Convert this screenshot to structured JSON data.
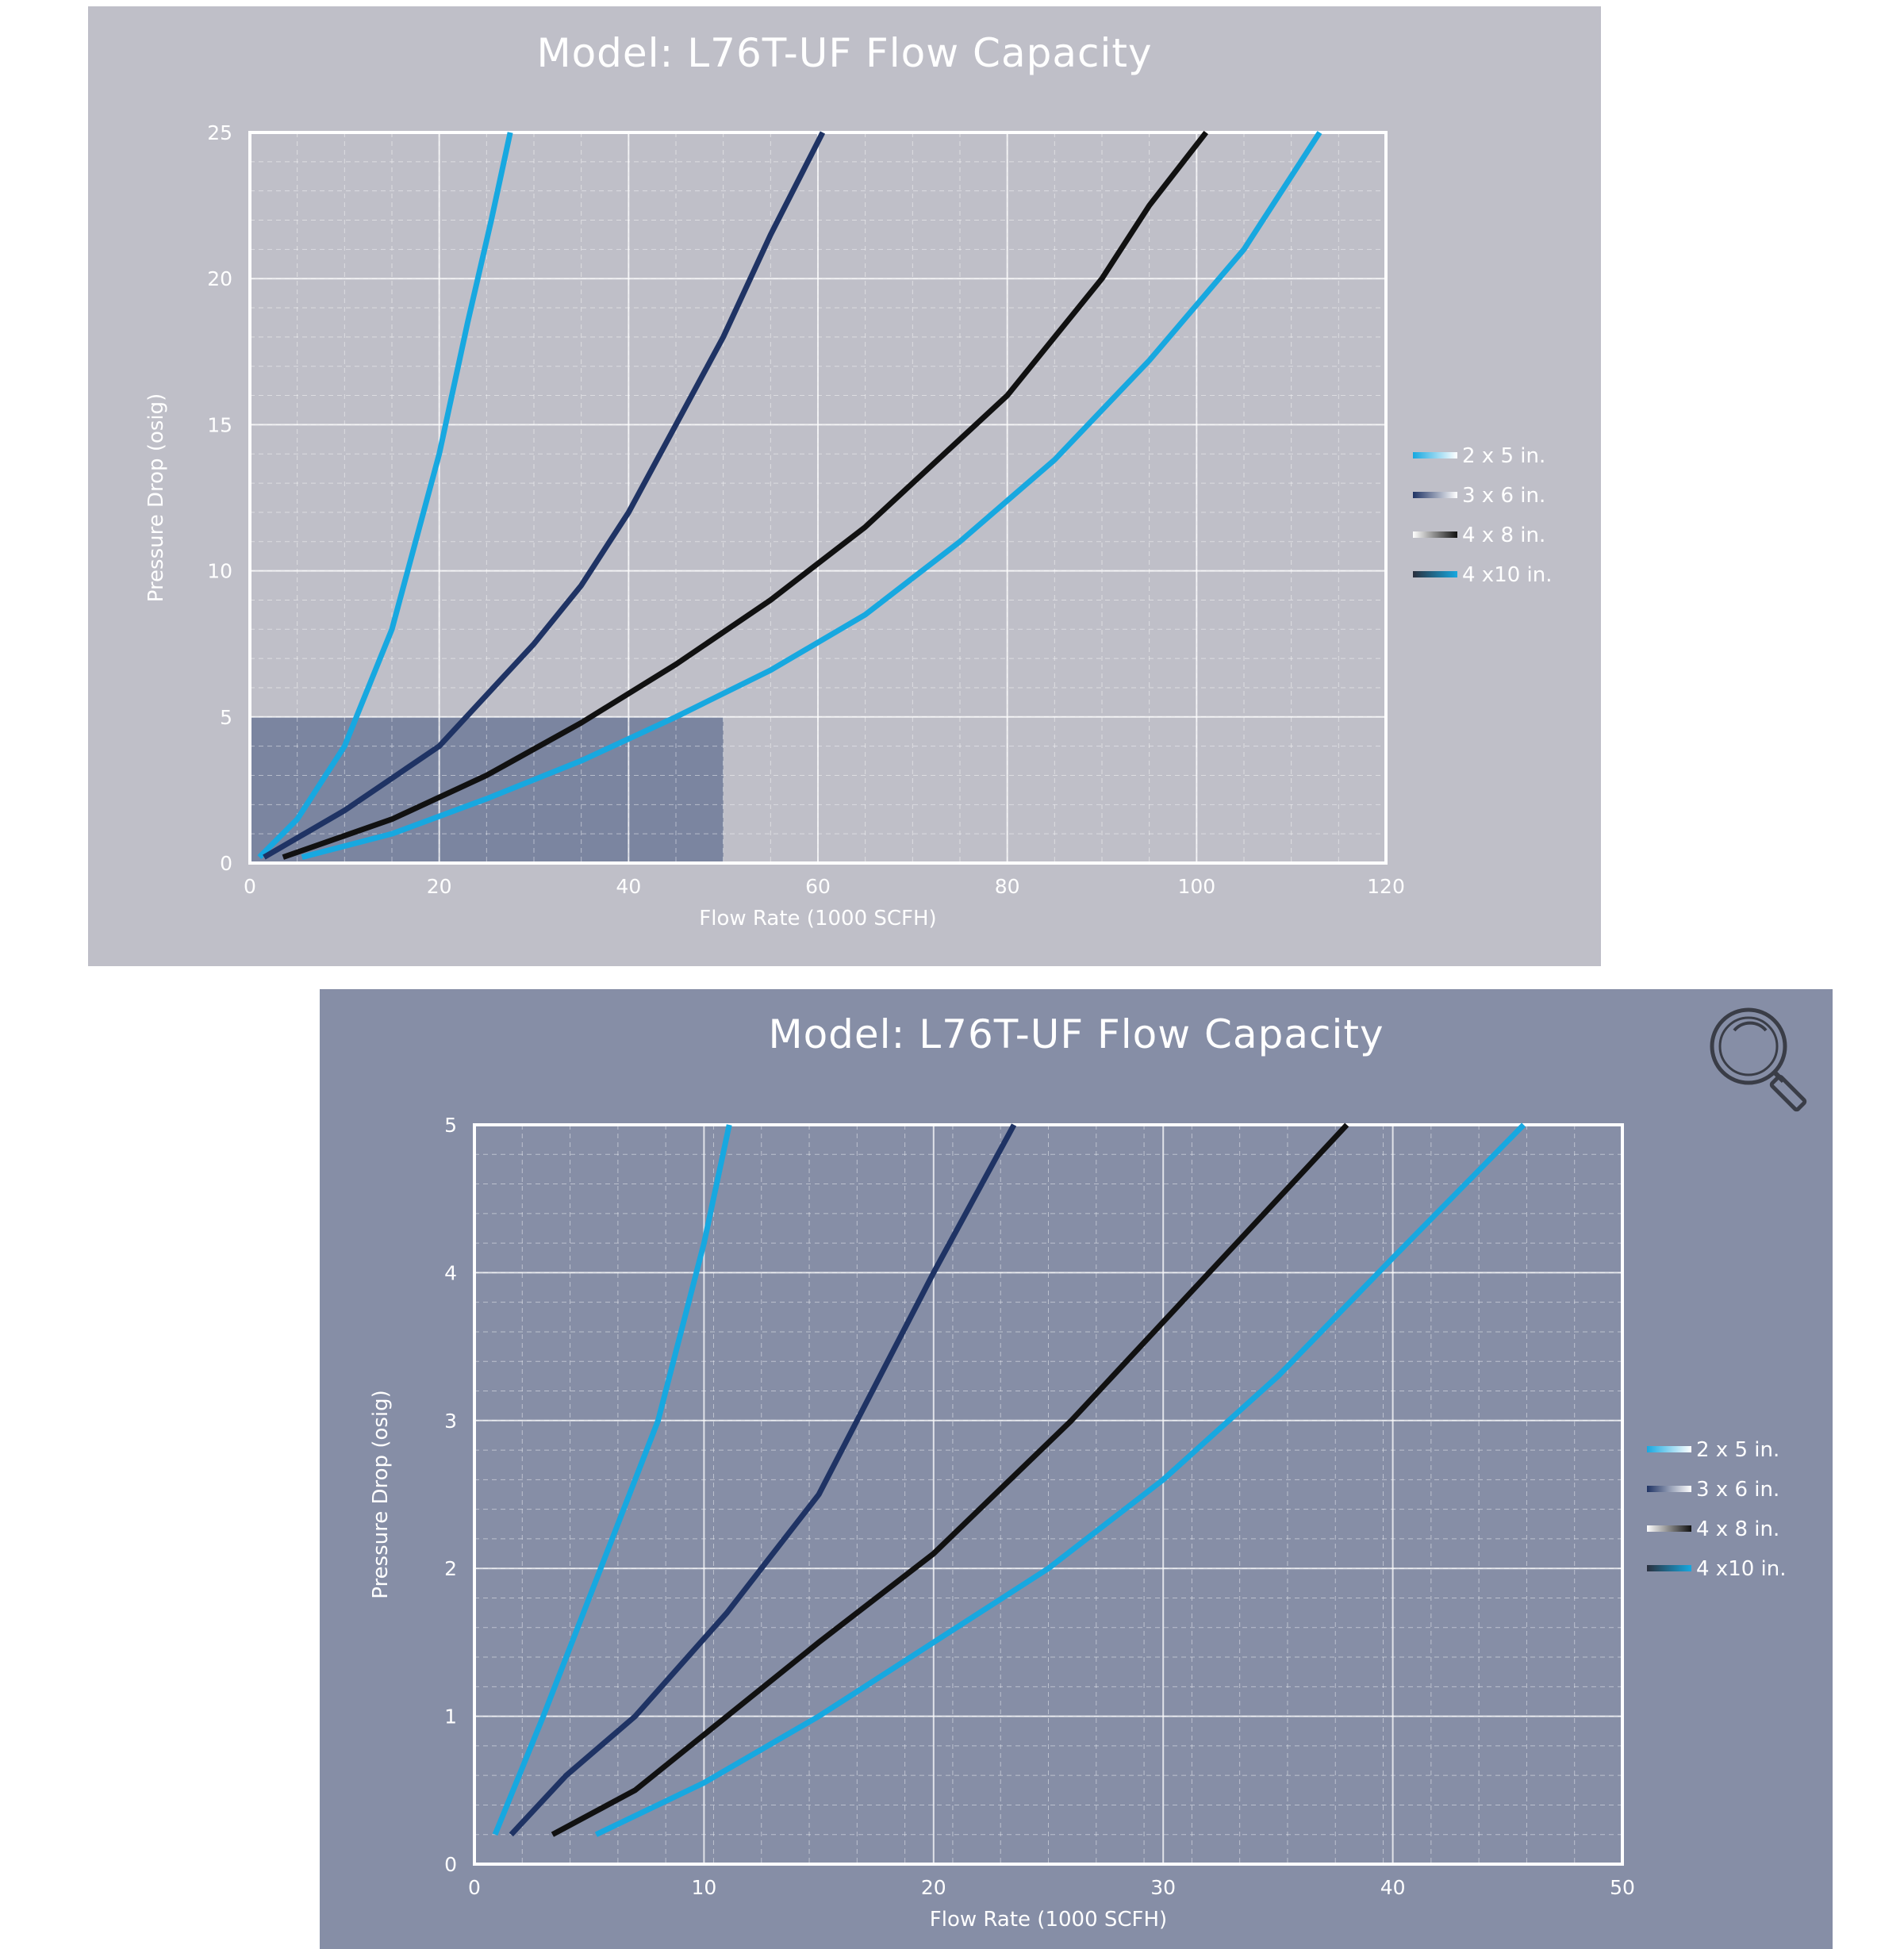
{
  "colors": {
    "s2x5": "#17a8e0",
    "s3x6": "#1f3364",
    "s4x8": "#111111",
    "s4x10": "#17a8e0",
    "grid": "#ffffff",
    "highlight": "#4f5f85"
  },
  "icons": {
    "zoom": "magnifier-icon"
  },
  "chart_data": [
    {
      "type": "line",
      "title": "Model: L76T-UF Flow Capacity",
      "xlabel": "Flow Rate (1000 SCFH)",
      "ylabel": "Pressure Drop (osig)",
      "xlim": [
        0,
        120
      ],
      "ylim": [
        0,
        25
      ],
      "xticks": [
        "0",
        "20",
        "40",
        "60",
        "80",
        "100",
        "120"
      ],
      "yticks": [
        "0",
        "5",
        "10",
        "15",
        "20",
        "25"
      ],
      "grid": true,
      "legend_position": "right",
      "highlight_region": {
        "x": [
          0,
          50
        ],
        "y": [
          0,
          5
        ]
      },
      "series": [
        {
          "name": "2 x 5 in.",
          "x": [
            1,
            5,
            10,
            15,
            20,
            23,
            25.5,
            27.5
          ],
          "y": [
            0.2,
            1.5,
            4,
            8,
            14,
            18.5,
            22,
            25
          ]
        },
        {
          "name": "3 x 6 in.",
          "x": [
            1.5,
            10,
            20,
            30,
            35,
            40,
            45,
            50,
            55,
            60.5
          ],
          "y": [
            0.2,
            1.8,
            4,
            7.5,
            9.5,
            12,
            15,
            18,
            21.5,
            25
          ]
        },
        {
          "name": "4 x 8 in.",
          "x": [
            3.5,
            15,
            25,
            35,
            45,
            55,
            65,
            70,
            80,
            90,
            95,
            101
          ],
          "y": [
            0.2,
            1.5,
            3,
            4.8,
            6.8,
            9,
            11.5,
            13,
            16,
            20,
            22.5,
            25
          ]
        },
        {
          "name": "4 x10 in.",
          "x": [
            5.5,
            15,
            25,
            35,
            45,
            55,
            65,
            75,
            85,
            95,
            105,
            113
          ],
          "y": [
            0.2,
            1,
            2.2,
            3.5,
            5,
            6.6,
            8.5,
            11,
            13.8,
            17.2,
            21,
            25
          ]
        }
      ]
    },
    {
      "type": "line",
      "title": "Model: L76T-UF Flow Capacity",
      "xlabel": "Flow Rate (1000 SCFH)",
      "ylabel": "Pressure Drop (osig)",
      "xlim": [
        0,
        50
      ],
      "ylim": [
        0,
        5
      ],
      "xticks": [
        "0",
        "10",
        "20",
        "30",
        "40",
        "50"
      ],
      "yticks": [
        "0",
        "1",
        "2",
        "3",
        "4",
        "5"
      ],
      "grid": true,
      "legend_position": "right",
      "series": [
        {
          "name": "2 x 5 in.",
          "x": [
            0.9,
            3,
            5.5,
            8,
            10,
            11.1
          ],
          "y": [
            0.2,
            1,
            2,
            3,
            4.2,
            5
          ]
        },
        {
          "name": "3 x 6 in.",
          "x": [
            1.6,
            4,
            7,
            11,
            15,
            20,
            23.5
          ],
          "y": [
            0.2,
            0.6,
            1,
            1.7,
            2.5,
            4,
            5
          ]
        },
        {
          "name": "4 x 8 in.",
          "x": [
            3.4,
            7,
            11,
            15,
            20,
            26,
            32,
            38
          ],
          "y": [
            0.2,
            0.5,
            1,
            1.5,
            2.1,
            3,
            4,
            5
          ]
        },
        {
          "name": "4 x10 in.",
          "x": [
            5.3,
            10,
            15,
            20,
            25,
            30,
            35,
            40,
            45.7
          ],
          "y": [
            0.2,
            0.55,
            1,
            1.5,
            2,
            2.6,
            3.3,
            4.1,
            5
          ]
        }
      ]
    }
  ]
}
